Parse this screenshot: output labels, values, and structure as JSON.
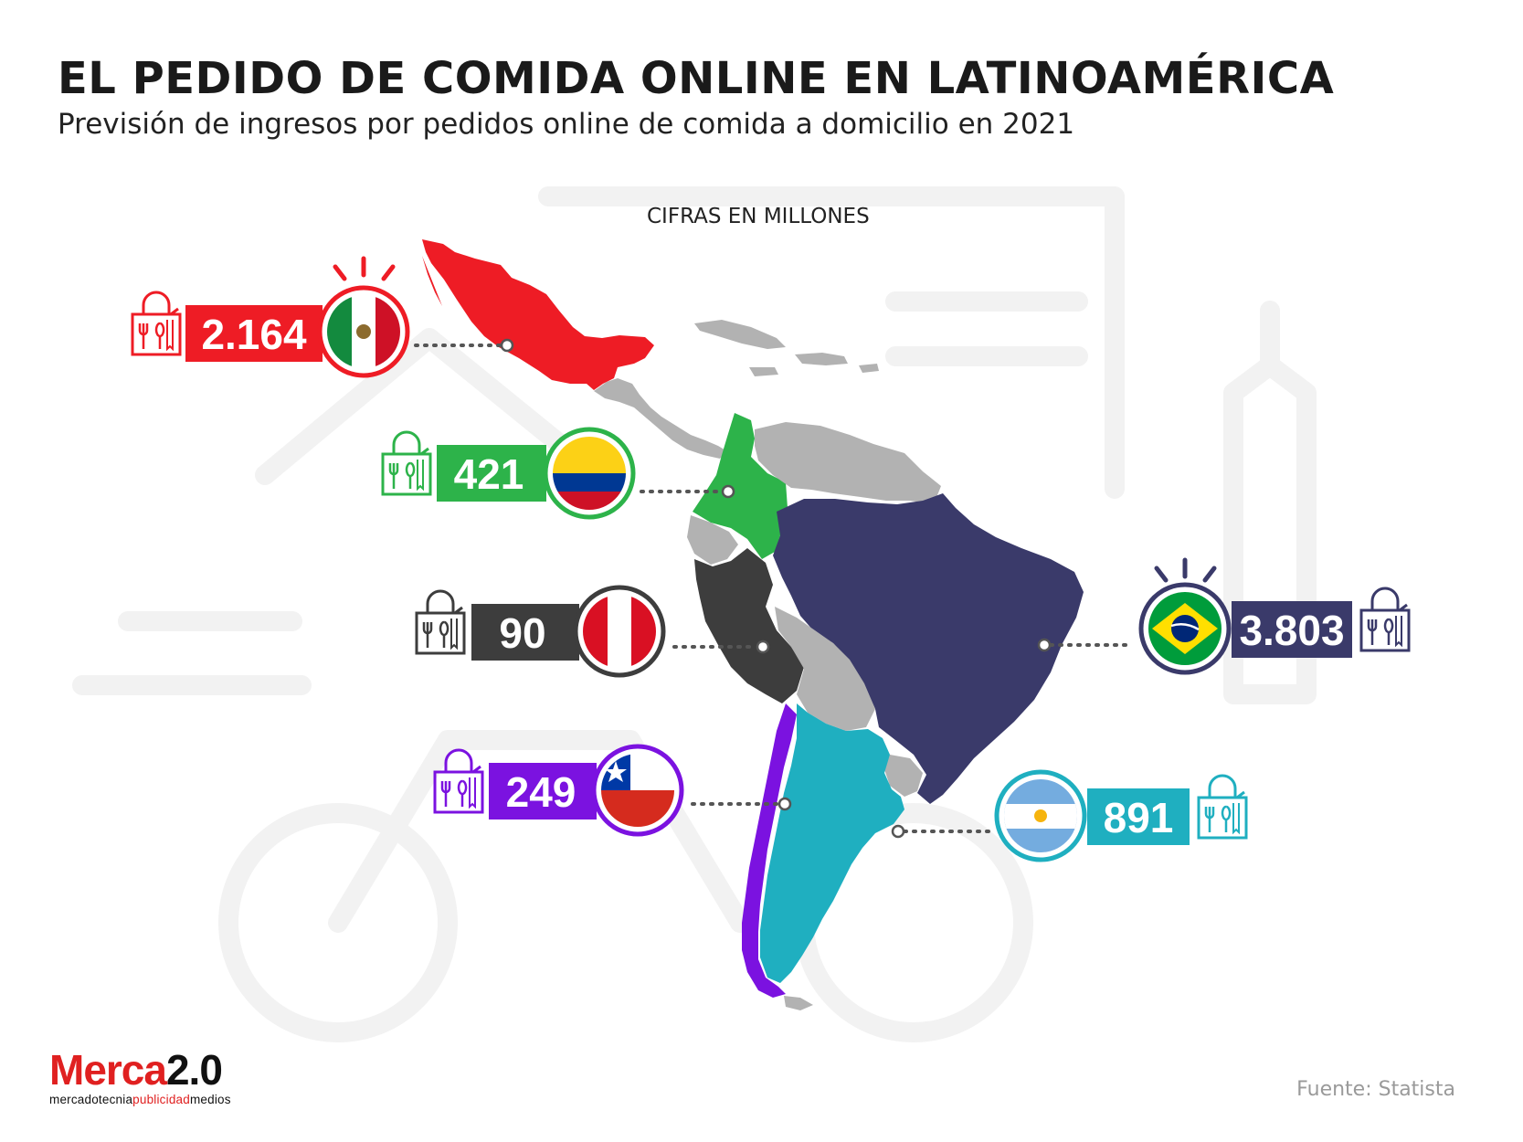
{
  "header": {
    "title": "EL PEDIDO DE COMIDA ONLINE EN LATINOAMÉRICA",
    "subtitle": "Previsión de ingresos por pedidos online de comida a domicilio en 2021",
    "unit_note": "CIFRAS EN MILLONES"
  },
  "countries": [
    {
      "country": "México",
      "value": "2.164",
      "color": "#ee1c25",
      "flag": "mexico-flag"
    },
    {
      "country": "Colombia",
      "value": "421",
      "color": "#2db34a",
      "flag": "colombia-flag"
    },
    {
      "country": "Perú",
      "value": "90",
      "color": "#3d3d3d",
      "flag": "peru-flag"
    },
    {
      "country": "Chile",
      "value": "249",
      "color": "#7b12e0",
      "flag": "chile-flag"
    },
    {
      "country": "Brasil",
      "value": "3.803",
      "color": "#3a3a6a",
      "flag": "brazil-flag"
    },
    {
      "country": "Argentina",
      "value": "891",
      "color": "#1fafc0",
      "flag": "argentina-flag"
    }
  ],
  "colors": {
    "other_countries": "#b2b2b2",
    "background_icons": "#f2f2f2"
  },
  "footer": {
    "logo_part1": "Merca",
    "logo_part2": "2.0",
    "logo_tag_1": "mercadotecnia",
    "logo_tag_2": "publicidad",
    "logo_tag_3": "medios",
    "source": "Fuente: Statista"
  }
}
